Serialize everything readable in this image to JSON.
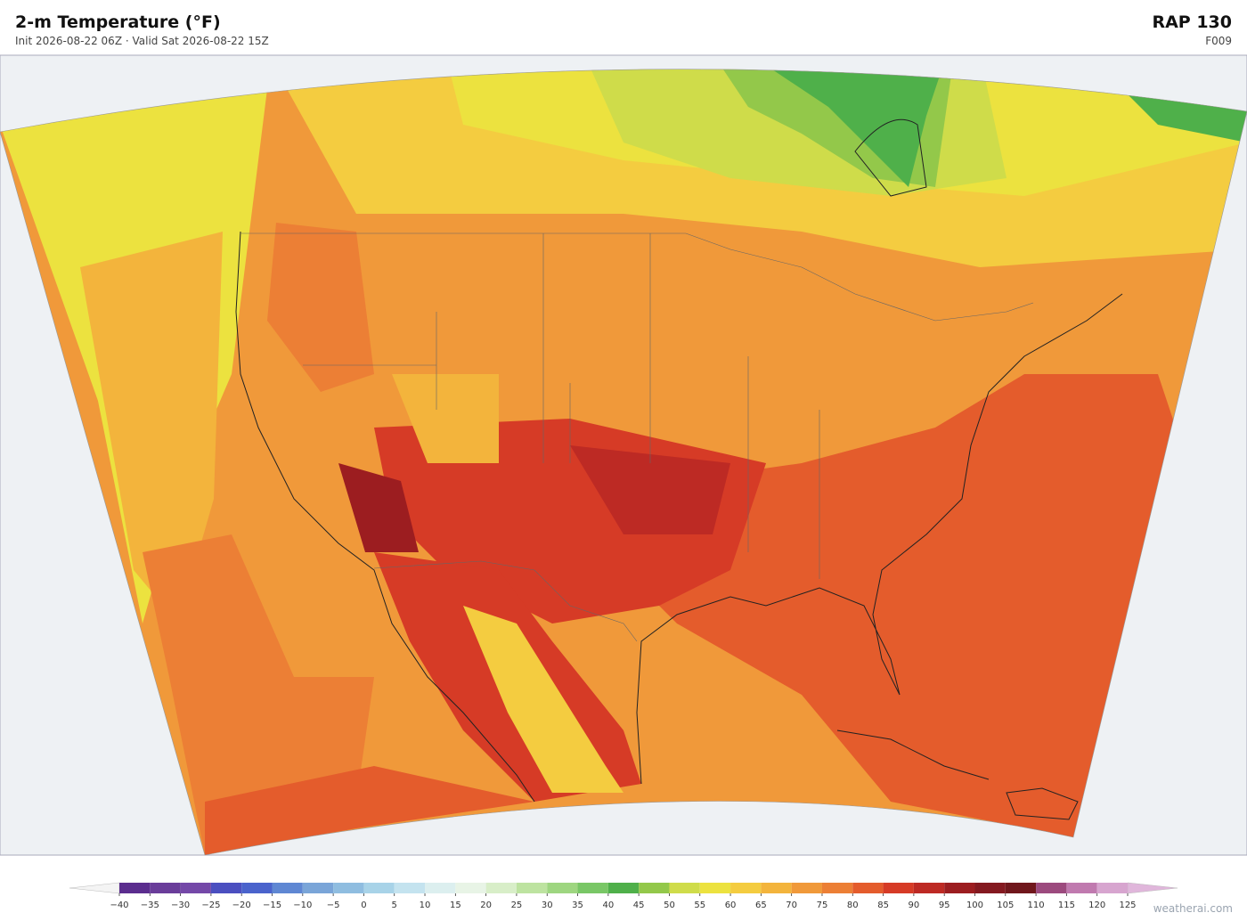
{
  "header": {
    "title": "2-m Temperature  (°F)",
    "subtitle": "Init 2026-08-22 06Z   ·   Valid Sat 2026-08-22 15Z",
    "model": "RAP  130",
    "forecast_hour": "F009"
  },
  "colorbar": {
    "ticks": [
      {
        "value": -40,
        "label": "−40"
      },
      {
        "value": -35,
        "label": "−35"
      },
      {
        "value": -30,
        "label": "−30"
      },
      {
        "value": -25,
        "label": "−25"
      },
      {
        "value": -20,
        "label": "−20"
      },
      {
        "value": -15,
        "label": "−15"
      },
      {
        "value": -10,
        "label": "−10"
      },
      {
        "value": -5,
        "label": "−5"
      },
      0,
      5,
      10,
      15,
      20,
      25,
      30,
      35,
      40,
      45,
      50,
      55,
      60,
      65,
      70,
      75,
      80,
      85,
      90,
      95,
      100,
      105,
      110,
      115,
      120,
      125
    ],
    "colors": [
      "#5b2d8e",
      "#6a3d9a",
      "#7448a8",
      "#4b4fc0",
      "#4a63cc",
      "#5f87d3",
      "#7aa5d8",
      "#8fbde0",
      "#a8d3e8",
      "#c4e3ef",
      "#dcefef",
      "#e8f4e6",
      "#d8eec8",
      "#bde3a0",
      "#9ed680",
      "#79c766",
      "#4fb04a",
      "#93c84a",
      "#cfdc4a",
      "#ece23f",
      "#f4cc40",
      "#f3b43c",
      "#f0993a",
      "#ec7f35",
      "#e45c2c",
      "#d63b26",
      "#bd2a24",
      "#9c1d20",
      "#841920",
      "#70171c",
      "#9c4a7e",
      "#c07aaf",
      "#d7a5cf"
    ]
  },
  "watermark": "weatherai.com"
}
